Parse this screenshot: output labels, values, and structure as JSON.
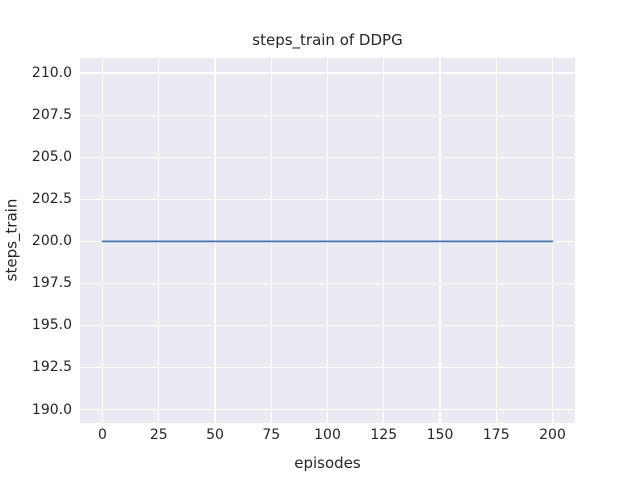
{
  "chart_data": {
    "type": "line",
    "title": "steps_train of DDPG",
    "xlabel": "episodes",
    "ylabel": "steps_train",
    "xlim": [
      -10,
      210
    ],
    "ylim": [
      189.2,
      210.9
    ],
    "xticks": [
      0,
      25,
      50,
      75,
      100,
      125,
      150,
      175,
      200
    ],
    "xtick_labels": [
      "0",
      "25",
      "50",
      "75",
      "100",
      "125",
      "150",
      "175",
      "200"
    ],
    "yticks": [
      190.0,
      192.5,
      195.0,
      197.5,
      200.0,
      202.5,
      205.0,
      207.5,
      210.0
    ],
    "ytick_labels": [
      "190.0",
      "192.5",
      "195.0",
      "197.5",
      "200.0",
      "202.5",
      "205.0",
      "207.5",
      "210.0"
    ],
    "grid": true,
    "legend": false,
    "series": [
      {
        "name": "steps_train",
        "x": [
          0,
          200
        ],
        "y": [
          200,
          200
        ],
        "color": "#4c72b0",
        "linewidth": 1.8
      }
    ],
    "style": {
      "figure_bg": "#ffffff",
      "plot_bg": "#eaeaf2",
      "grid_color": "#ffffff",
      "text_color": "#262626"
    }
  }
}
